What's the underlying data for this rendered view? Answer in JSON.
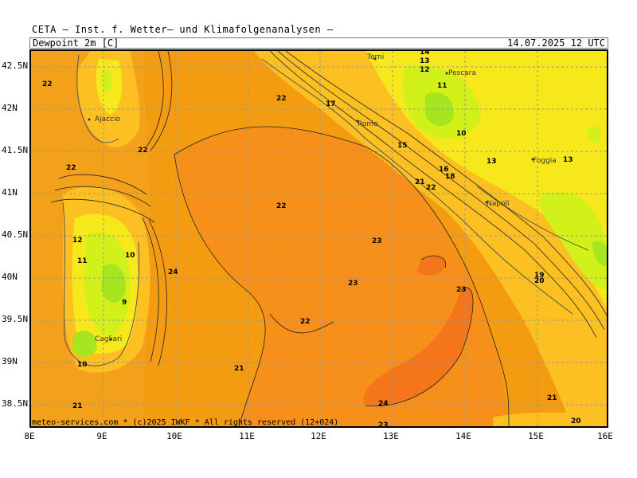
{
  "header": {
    "title": "CETA — Inst. f. Wetter— und Klimafolgenanalysen —"
  },
  "bar": {
    "field": "Dewpoint 2m [C]",
    "datetime": "14.07.2025 12 UTC"
  },
  "credit": "meteo-services.com * (c)2025 IWKF * All rights reserved (12+024)",
  "lat_labels": [
    "42.5N",
    "42N",
    "41.5N",
    "41N",
    "40.5N",
    "40N",
    "39.5N",
    "39N",
    "38.5N"
  ],
  "lon_labels": [
    "8E",
    "9E",
    "10E",
    "11E",
    "12E",
    "13E",
    "14E",
    "15E",
    "16E"
  ],
  "cities": [
    "Ajaccio",
    "Cagliari",
    "Rome",
    "Terni",
    "Pescara",
    "Napoli",
    "Foggia"
  ],
  "contour_labels": [
    "22",
    "22",
    "22",
    "22",
    "22",
    "22",
    "22",
    "23",
    "23",
    "23",
    "23",
    "24",
    "24",
    "21",
    "21",
    "21",
    "21",
    "20",
    "20",
    "19",
    "18",
    "17",
    "16",
    "15",
    "14",
    "13",
    "13",
    "13",
    "12",
    "12",
    "11",
    "11",
    "10",
    "10",
    "10",
    "9"
  ],
  "colors": {
    "background": "#ffffff",
    "dp_21_23": "#f39c12",
    "dp_23_plus": "#fb8a18",
    "dp_24_plus": "#f5761a",
    "dp_18_21": "#fcc022",
    "dp_14_18": "#f6e81a",
    "dp_11_14": "#d2f01a",
    "dp_low": "#a6e620"
  }
}
